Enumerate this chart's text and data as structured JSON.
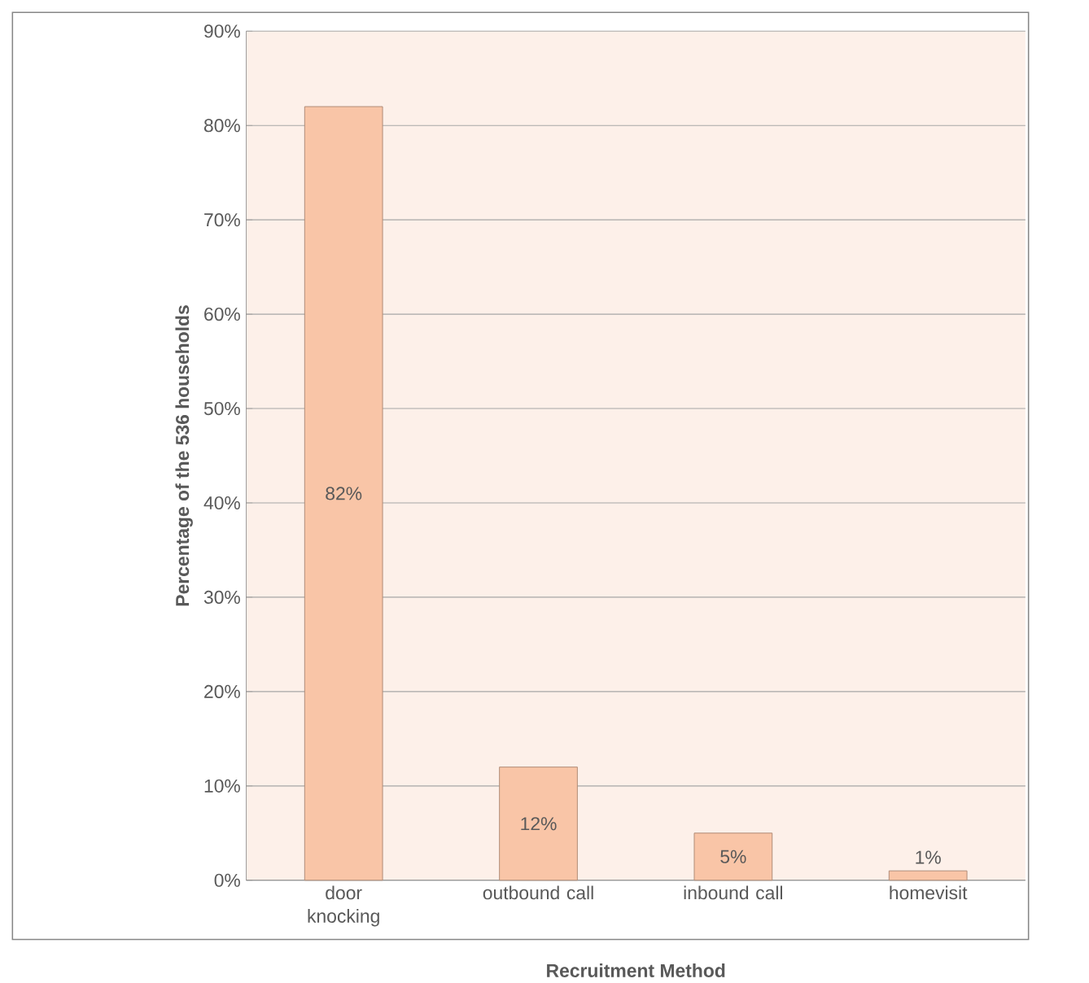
{
  "chart_data": {
    "type": "bar",
    "xlabel": "Recruitment Method",
    "ylabel": "Percentage of the 536 households",
    "categories": [
      "door knocking",
      "outbound call",
      "inbound call",
      "homevisit"
    ],
    "values": [
      82,
      12,
      5,
      1
    ],
    "color": "#f9c5a7",
    "value_labels": [
      "82%",
      "12%",
      "5%",
      "1%"
    ],
    "ylim": [
      0,
      90
    ],
    "yticks": [
      {
        "value": 0,
        "label": "0%"
      },
      {
        "value": 10,
        "label": "10%"
      },
      {
        "value": 20,
        "label": "20%"
      },
      {
        "value": 30,
        "label": "30%"
      },
      {
        "value": 40,
        "label": "40%"
      },
      {
        "value": 50,
        "label": "50%"
      },
      {
        "value": 60,
        "label": "60%"
      },
      {
        "value": 70,
        "label": "70%"
      },
      {
        "value": 80,
        "label": "80%"
      },
      {
        "value": 90,
        "label": "90%"
      }
    ],
    "grid": "y"
  }
}
